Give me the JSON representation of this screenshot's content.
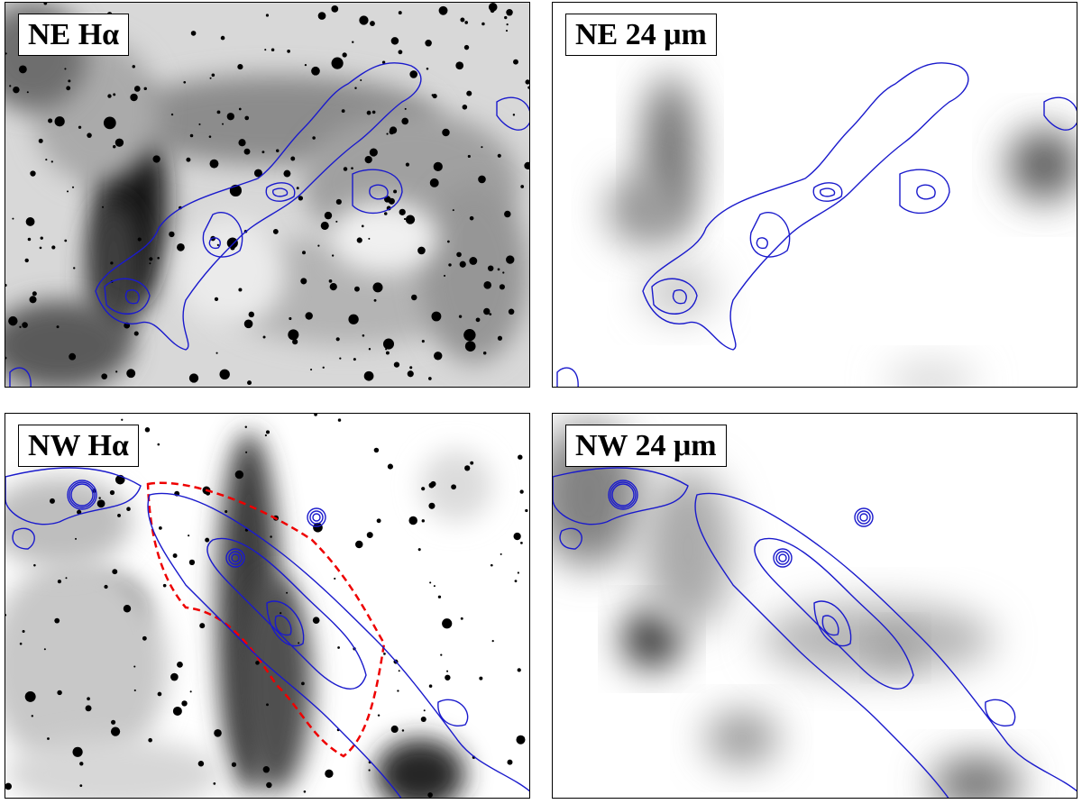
{
  "panels": [
    {
      "label": "NE Hα"
    },
    {
      "label": "NE 24 μm"
    },
    {
      "label": "NW Hα"
    },
    {
      "label": "NW 24 μm"
    }
  ]
}
